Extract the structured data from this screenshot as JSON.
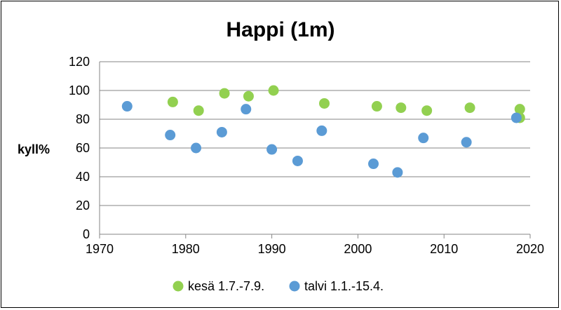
{
  "chart_data": {
    "type": "scatter",
    "title": "Happi (1m)",
    "xlabel": "",
    "ylabel": "kyll%",
    "xlim": [
      1970,
      2020
    ],
    "ylim": [
      0,
      120
    ],
    "xticks": [
      1970,
      1980,
      1990,
      2000,
      2010,
      2020
    ],
    "yticks": [
      0,
      20,
      40,
      60,
      80,
      100,
      120
    ],
    "grid": "horizontal",
    "legend_position": "bottom",
    "series": [
      {
        "name": "kesä 1.7.-7.9.",
        "color": "#92D050",
        "points": [
          {
            "x": 1978.5,
            "y": 92
          },
          {
            "x": 1981.5,
            "y": 86
          },
          {
            "x": 1984.5,
            "y": 98
          },
          {
            "x": 1987.3,
            "y": 96
          },
          {
            "x": 1990.2,
            "y": 100
          },
          {
            "x": 1996.1,
            "y": 91
          },
          {
            "x": 2002.2,
            "y": 89
          },
          {
            "x": 2005.0,
            "y": 88
          },
          {
            "x": 2008.0,
            "y": 86
          },
          {
            "x": 2013.0,
            "y": 88
          },
          {
            "x": 2018.8,
            "y": 87
          },
          {
            "x": 2018.8,
            "y": 81
          }
        ]
      },
      {
        "name": "talvi 1.1.-15.4.",
        "color": "#5B9BD5",
        "points": [
          {
            "x": 1973.2,
            "y": 89
          },
          {
            "x": 1978.2,
            "y": 69
          },
          {
            "x": 1981.2,
            "y": 60
          },
          {
            "x": 1984.2,
            "y": 71
          },
          {
            "x": 1987.0,
            "y": 87
          },
          {
            "x": 1990.0,
            "y": 59
          },
          {
            "x": 1993.0,
            "y": 51
          },
          {
            "x": 1995.8,
            "y": 72
          },
          {
            "x": 2001.8,
            "y": 49
          },
          {
            "x": 2004.6,
            "y": 43
          },
          {
            "x": 2007.6,
            "y": 67
          },
          {
            "x": 2012.6,
            "y": 64
          },
          {
            "x": 2018.4,
            "y": 81
          }
        ]
      }
    ]
  }
}
